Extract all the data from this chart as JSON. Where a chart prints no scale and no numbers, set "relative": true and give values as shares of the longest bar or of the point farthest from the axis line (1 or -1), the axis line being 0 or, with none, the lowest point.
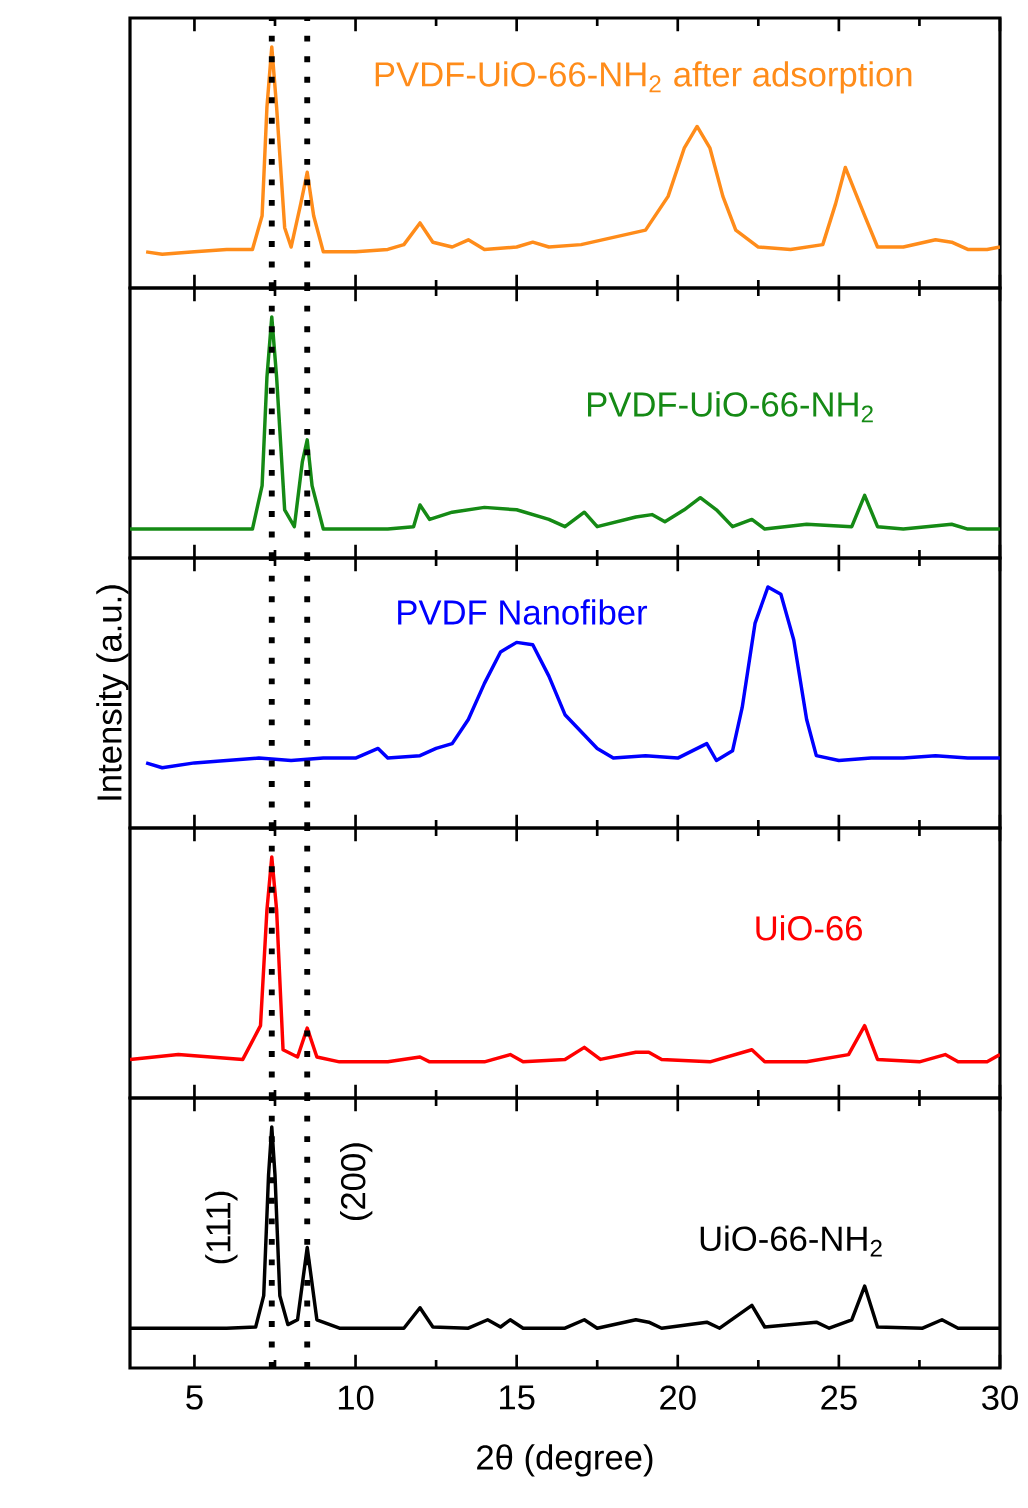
{
  "chart_data": [
    {
      "type": "line",
      "relative": true,
      "xlim": [
        3,
        30
      ],
      "xticks": [
        5,
        10,
        15,
        20,
        25,
        30
      ],
      "tick_labels": false,
      "x": [
        3.5,
        4,
        5,
        6,
        6.8,
        7.1,
        7.25,
        7.4,
        7.55,
        7.8,
        8.0,
        8.3,
        8.5,
        8.7,
        9.0,
        10,
        11,
        11.5,
        12,
        12.4,
        13,
        13.5,
        14,
        15,
        15.5,
        16,
        17,
        18,
        19,
        19.7,
        20.2,
        20.6,
        21,
        21.4,
        21.8,
        22.5,
        23.5,
        24.5,
        24.9,
        25.2,
        25.5,
        25.8,
        26.2,
        27,
        28,
        28.5,
        29,
        29.6,
        30
      ],
      "series": [
        {
          "name": "PVDF-UiO-66-NH$_{2}$ after adsorption",
          "color": "#ff8c1a",
          "values": [
            0.15,
            0.14,
            0.15,
            0.16,
            0.16,
            0.3,
            0.75,
            1.0,
            0.75,
            0.25,
            0.17,
            0.35,
            0.48,
            0.3,
            0.15,
            0.15,
            0.16,
            0.18,
            0.27,
            0.19,
            0.17,
            0.2,
            0.16,
            0.17,
            0.19,
            0.17,
            0.18,
            0.21,
            0.24,
            0.38,
            0.58,
            0.67,
            0.58,
            0.38,
            0.24,
            0.17,
            0.16,
            0.18,
            0.35,
            0.5,
            0.4,
            0.3,
            0.17,
            0.17,
            0.2,
            0.19,
            0.16,
            0.16,
            0.17
          ]
        }
      ],
      "ref_lines": [
        {
          "axis": "x",
          "value": 7.4,
          "color": "#000000",
          "line_style": "dotted"
        },
        {
          "axis": "x",
          "value": 8.5,
          "color": "#000000",
          "line_style": "dotted"
        }
      ]
    },
    {
      "type": "line",
      "relative": true,
      "xlim": [
        3,
        30
      ],
      "xticks": [
        5,
        10,
        15,
        20,
        25,
        30
      ],
      "tick_labels": false,
      "x": [
        3,
        4,
        5,
        6,
        6.8,
        7.1,
        7.25,
        7.4,
        7.55,
        7.8,
        8.1,
        8.35,
        8.5,
        8.65,
        9.0,
        10,
        11,
        11.8,
        12,
        12.3,
        13,
        14,
        15,
        16,
        16.5,
        17.1,
        17.5,
        18.7,
        19.2,
        19.6,
        20.2,
        20.7,
        21.2,
        21.7,
        22.3,
        22.7,
        24,
        25.4,
        25.8,
        26.2,
        27,
        28.5,
        29,
        30
      ],
      "series": [
        {
          "name": "PVDF-UiO-66-NH$_{2}$",
          "color": "#158a15",
          "values": [
            0.12,
            0.12,
            0.12,
            0.12,
            0.12,
            0.3,
            0.75,
            1.0,
            0.75,
            0.2,
            0.13,
            0.4,
            0.49,
            0.3,
            0.12,
            0.12,
            0.12,
            0.13,
            0.22,
            0.16,
            0.19,
            0.21,
            0.2,
            0.16,
            0.13,
            0.19,
            0.13,
            0.17,
            0.18,
            0.15,
            0.2,
            0.25,
            0.2,
            0.13,
            0.16,
            0.12,
            0.14,
            0.13,
            0.26,
            0.13,
            0.12,
            0.14,
            0.12,
            0.12
          ]
        }
      ],
      "ref_lines": [
        {
          "axis": "x",
          "value": 7.4,
          "color": "#000000",
          "line_style": "dotted"
        },
        {
          "axis": "x",
          "value": 8.5,
          "color": "#000000",
          "line_style": "dotted"
        }
      ]
    },
    {
      "type": "line",
      "relative": true,
      "xlim": [
        3,
        30
      ],
      "xticks": [
        5,
        10,
        15,
        20,
        25,
        30
      ],
      "tick_labels": false,
      "ylabel": "Intensity (a.u.)",
      "x": [
        3.5,
        4,
        5,
        6,
        7,
        8,
        9,
        10,
        10.7,
        11,
        12,
        12.5,
        13,
        13.5,
        14,
        14.5,
        15,
        15.5,
        16,
        16.5,
        17,
        17.5,
        18,
        19,
        20,
        20.9,
        21.2,
        21.7,
        22,
        22.4,
        22.8,
        23.2,
        23.6,
        24,
        24.3,
        25,
        26,
        27,
        28,
        29,
        30
      ],
      "series": [
        {
          "name": "PVDF Nanofiber",
          "color": "#0000ff",
          "values": [
            0.27,
            0.25,
            0.27,
            0.28,
            0.29,
            0.28,
            0.29,
            0.29,
            0.33,
            0.29,
            0.3,
            0.33,
            0.35,
            0.45,
            0.6,
            0.73,
            0.77,
            0.76,
            0.63,
            0.47,
            0.4,
            0.33,
            0.29,
            0.3,
            0.29,
            0.35,
            0.28,
            0.32,
            0.5,
            0.85,
            1.0,
            0.97,
            0.78,
            0.45,
            0.3,
            0.28,
            0.29,
            0.29,
            0.3,
            0.29,
            0.29
          ]
        }
      ],
      "ref_lines": [
        {
          "axis": "x",
          "value": 7.4,
          "color": "#000000",
          "line_style": "dotted"
        },
        {
          "axis": "x",
          "value": 8.5,
          "color": "#000000",
          "line_style": "dotted"
        }
      ]
    },
    {
      "type": "line",
      "relative": true,
      "xlim": [
        3,
        30
      ],
      "xticks": [
        5,
        10,
        15,
        20,
        25,
        30
      ],
      "tick_labels": false,
      "x": [
        3,
        4.5,
        5.5,
        6.5,
        7.05,
        7.25,
        7.4,
        7.55,
        7.75,
        8.2,
        8.5,
        8.8,
        9.5,
        11,
        12,
        12.3,
        14,
        14.8,
        15.2,
        16.5,
        17.1,
        17.6,
        18.7,
        19.1,
        19.5,
        21,
        22.3,
        22.7,
        24,
        25.3,
        25.8,
        26.2,
        27.5,
        28.3,
        28.7,
        29.6,
        30
      ],
      "series": [
        {
          "name": "UiO-66",
          "color": "#ff0000",
          "values": [
            0.16,
            0.18,
            0.17,
            0.16,
            0.3,
            0.78,
            1.0,
            0.78,
            0.2,
            0.17,
            0.29,
            0.17,
            0.15,
            0.15,
            0.17,
            0.15,
            0.15,
            0.18,
            0.15,
            0.16,
            0.21,
            0.16,
            0.19,
            0.19,
            0.16,
            0.15,
            0.2,
            0.15,
            0.15,
            0.18,
            0.3,
            0.16,
            0.15,
            0.18,
            0.15,
            0.15,
            0.18
          ]
        }
      ],
      "ref_lines": [
        {
          "axis": "x",
          "value": 7.4,
          "color": "#000000",
          "line_style": "dotted"
        },
        {
          "axis": "x",
          "value": 8.5,
          "color": "#000000",
          "line_style": "dotted"
        }
      ]
    },
    {
      "type": "line",
      "relative": true,
      "xlim": [
        3,
        30
      ],
      "xticks": [
        5,
        10,
        15,
        20,
        25,
        30
      ],
      "tick_labels": "x",
      "xlabel": "2θ (degree)",
      "annotations": [
        "(111)",
        "(200)"
      ],
      "x": [
        3,
        4.5,
        6,
        6.9,
        7.15,
        7.3,
        7.4,
        7.5,
        7.65,
        7.9,
        8.2,
        8.4,
        8.5,
        8.6,
        8.8,
        9.5,
        11.5,
        12,
        12.4,
        13.5,
        14.1,
        14.5,
        14.8,
        15.2,
        16.5,
        17.1,
        17.5,
        18.7,
        19.1,
        19.5,
        20.9,
        21.3,
        22.3,
        22.7,
        24.3,
        24.7,
        25.4,
        25.8,
        26.2,
        27.6,
        28.2,
        28.7,
        30
      ],
      "series": [
        {
          "name": "UiO-66-NH$_{2}$",
          "color": "#000000",
          "values": [
            0.165,
            0.165,
            0.165,
            0.17,
            0.3,
            0.8,
            1.0,
            0.8,
            0.3,
            0.18,
            0.2,
            0.4,
            0.5,
            0.4,
            0.2,
            0.165,
            0.165,
            0.25,
            0.17,
            0.165,
            0.2,
            0.17,
            0.2,
            0.165,
            0.165,
            0.2,
            0.165,
            0.2,
            0.19,
            0.165,
            0.19,
            0.165,
            0.26,
            0.17,
            0.19,
            0.165,
            0.2,
            0.34,
            0.17,
            0.165,
            0.2,
            0.165,
            0.165
          ]
        }
      ],
      "ref_lines": [
        {
          "axis": "x",
          "value": 7.4,
          "color": "#000000",
          "line_style": "dotted"
        },
        {
          "axis": "x",
          "value": 8.5,
          "color": "#000000",
          "line_style": "dotted"
        }
      ]
    }
  ]
}
